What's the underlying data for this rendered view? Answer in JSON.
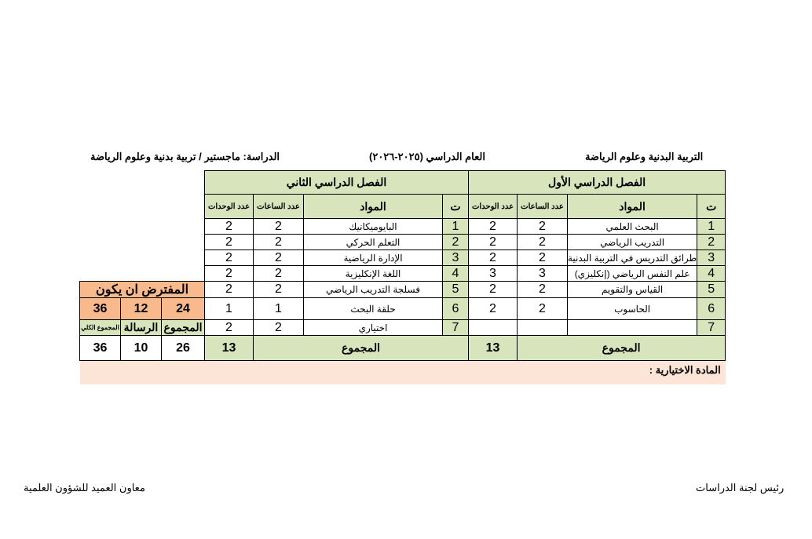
{
  "header": {
    "faculty": "التربية البدنية وعلوم الرياضة",
    "year": "العام الدراسي (٢٠٢٥-٢٠٢٦)",
    "study": "الدراسة: ماجستير / تربية بدنية وعلوم الرياضة"
  },
  "columns": {
    "num": "ت",
    "subjects": "المواد",
    "hours": "عدد الساعات",
    "units": "عدد الوحدات"
  },
  "semester1": {
    "title": "الفصل الدراسي الأول",
    "rows": [
      {
        "n": "1",
        "subject": "البحث العلمي",
        "hours": "2",
        "units": "2"
      },
      {
        "n": "2",
        "subject": "التدريب الرياضي",
        "hours": "2",
        "units": "2"
      },
      {
        "n": "3",
        "subject": "طرائق التدريس في التربية البدنية",
        "hours": "2",
        "units": "2"
      },
      {
        "n": "4",
        "subject": "علم النفس الرياضي (إنكليزي)",
        "hours": "3",
        "units": "3"
      },
      {
        "n": "5",
        "subject": "القياس والتقويم",
        "hours": "2",
        "units": "2"
      },
      {
        "n": "6",
        "subject": "الحاسوب",
        "hours": "2",
        "units": "2"
      },
      {
        "n": "7",
        "subject": "",
        "hours": "",
        "units": ""
      }
    ],
    "total_label": "المجموع",
    "total": "13"
  },
  "semester2": {
    "title": "الفصل الدراسي الثاني",
    "rows": [
      {
        "n": "1",
        "subject": "البايوميكانيك",
        "hours": "2",
        "units": "2"
      },
      {
        "n": "2",
        "subject": "التعلم الحركي",
        "hours": "2",
        "units": "2"
      },
      {
        "n": "3",
        "subject": "الإدارة الرياضية",
        "hours": "2",
        "units": "2"
      },
      {
        "n": "4",
        "subject": "اللغة الإنكليزية",
        "hours": "2",
        "units": "2"
      },
      {
        "n": "5",
        "subject": "فسلجة التدريب الرياضي",
        "hours": "2",
        "units": "2"
      },
      {
        "n": "6",
        "subject": "حلقة البحث",
        "hours": "1",
        "units": "1"
      },
      {
        "n": "7",
        "subject": "اختياري",
        "hours": "2",
        "units": "2"
      }
    ],
    "total_label": "المجموع",
    "total": "13"
  },
  "summary": {
    "expected_title": "المفترض ان يكون",
    "expected": {
      "sum": "24",
      "thesis": "12",
      "grand": "36"
    },
    "labels": {
      "sum": "المجموع",
      "thesis": "الرسالة",
      "grand": "المجموع الكلي"
    },
    "actual": {
      "sum": "26",
      "thesis": "10",
      "grand": "36"
    }
  },
  "elective_note": "المادة الاختيارية :",
  "footer": {
    "right": "رئيس لجنة الدراسات",
    "left": "معاون العميد للشؤون العلمية"
  }
}
